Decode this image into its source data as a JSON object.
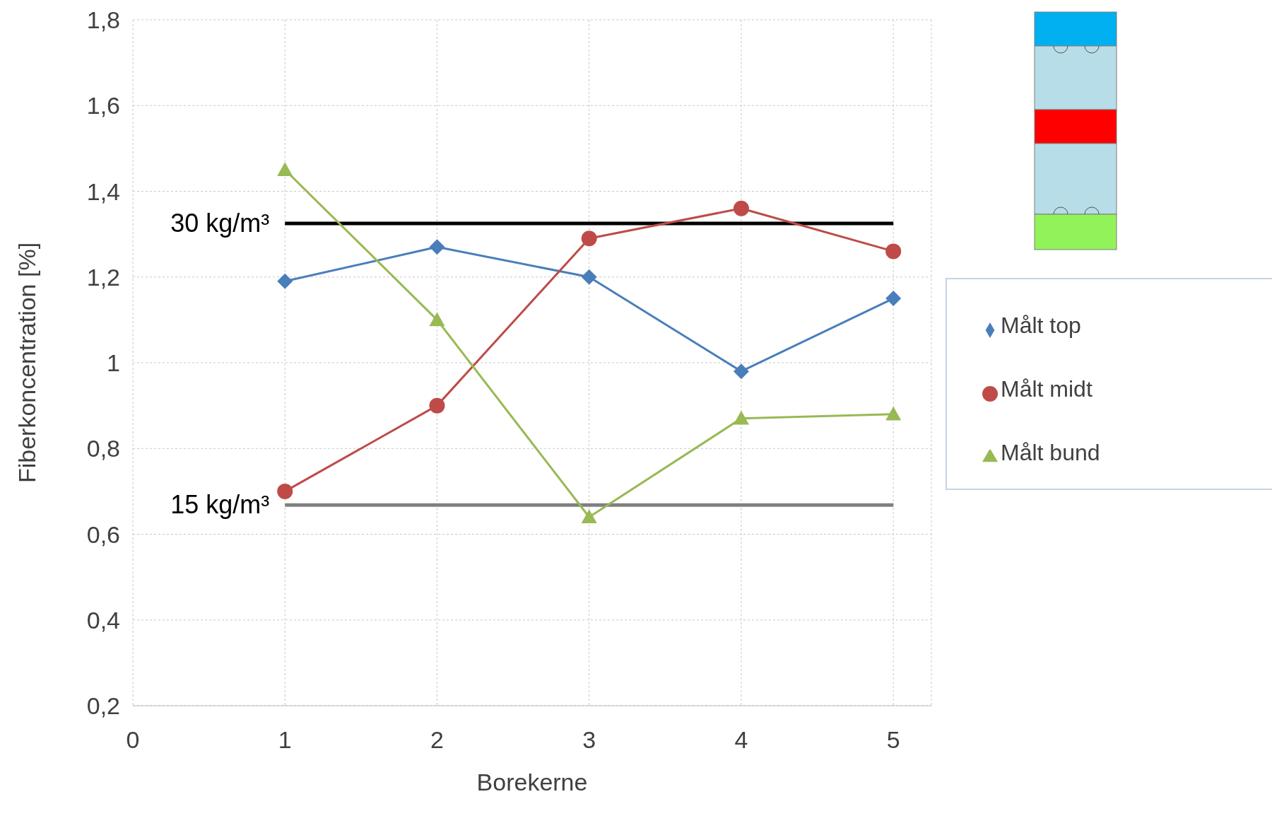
{
  "chart_data": {
    "type": "line",
    "xlabel": "Borekerne",
    "ylabel": "Fiberkoncentration [%]",
    "x": [
      1,
      2,
      3,
      4,
      5
    ],
    "series": [
      {
        "name": "Målt top",
        "color": "#4a7ebb",
        "marker": "diamond",
        "values": [
          1.19,
          1.27,
          1.2,
          0.98,
          1.15
        ]
      },
      {
        "name": "Målt midt",
        "color": "#be4b48",
        "marker": "circle",
        "values": [
          0.7,
          0.9,
          1.29,
          1.36,
          1.26
        ]
      },
      {
        "name": "Målt bund",
        "color": "#98b954",
        "marker": "triangle",
        "values": [
          1.45,
          1.1,
          0.64,
          0.87,
          0.88
        ]
      }
    ],
    "xlim": [
      0,
      5.25
    ],
    "xticks": [
      0,
      1,
      2,
      3,
      4,
      5
    ],
    "ylim": [
      0.2,
      1.8
    ],
    "yticks": [
      {
        "value": 0.2,
        "label": "0,2"
      },
      {
        "value": 0.4,
        "label": "0,4"
      },
      {
        "value": 0.6,
        "label": "0,6"
      },
      {
        "value": 0.8,
        "label": "0,8"
      },
      1,
      {
        "value": 1.2,
        "label": "1,2"
      },
      {
        "value": 1.4,
        "label": "1,4"
      },
      {
        "value": 1.6,
        "label": "1,6"
      },
      {
        "value": 1.8,
        "label": "1,8"
      }
    ],
    "ref_lines": [
      {
        "axis": "y",
        "value": 1.325,
        "label": "30 kg/m³",
        "color": "#000000"
      },
      {
        "axis": "y",
        "value": 0.668,
        "label": "15 kg/m³",
        "color": "#808080"
      }
    ],
    "grid": true,
    "legend": "right",
    "line_style": "solid"
  }
}
